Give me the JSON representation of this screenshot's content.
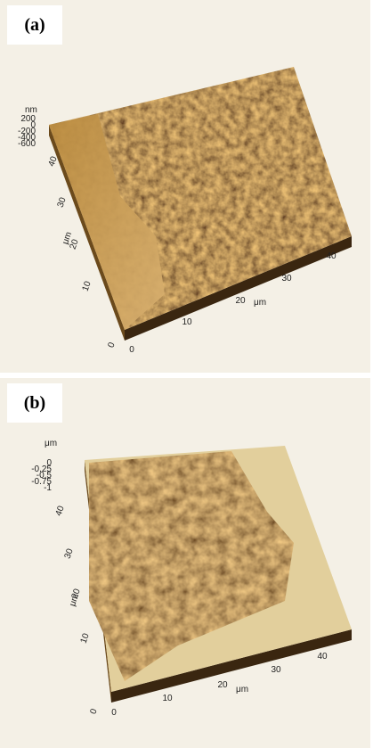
{
  "panels": [
    {
      "label": "(a)",
      "z_unit": "nm",
      "z_ticks": [
        "200",
        "0",
        "-200",
        "-400",
        "-600"
      ],
      "y_ticks": [
        "40",
        "30",
        "20",
        "10",
        "0"
      ],
      "y_label": "μm",
      "x_ticks": [
        "0",
        "10",
        "20",
        "30",
        "40"
      ],
      "x_label": "μm"
    },
    {
      "label": "(b)",
      "z_unit": "μm",
      "z_ticks": [
        "0",
        "-0.25",
        "-0.5",
        "-0.75",
        "-1"
      ],
      "y_ticks": [
        "40",
        "30",
        "20",
        "10",
        "0"
      ],
      "y_label": "μm",
      "x_ticks": [
        "0",
        "10",
        "20",
        "30",
        "40"
      ],
      "x_label": "μm"
    }
  ]
}
